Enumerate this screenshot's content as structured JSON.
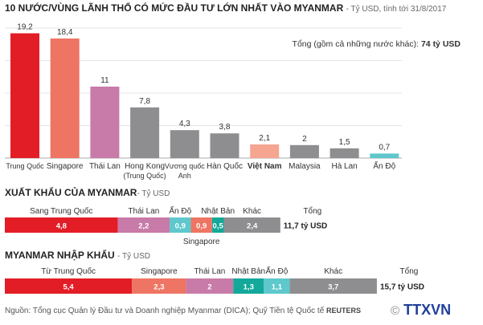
{
  "colors": {
    "red": "#e31d26",
    "salmon": "#ee7463",
    "pink": "#c87aa8",
    "gray": "#8e8e90",
    "vn": "#f5a590",
    "teal_light": "#5ec8cc",
    "teal_dark": "#14a89a"
  },
  "chart_data": [
    {
      "type": "bar",
      "title": "10 NƯỚC/VÙNG LÃNH THỔ CÓ MỨC ĐẦU TƯ LỚN NHẤT VÀO MYANMAR",
      "subtitle": "- Tỷ USD, tính tới 31/8/2017",
      "categories": [
        [
          "Trung Quốc"
        ],
        [
          "Singapore"
        ],
        [
          "Thái Lan"
        ],
        [
          "Hong Kong",
          "(Trung Quốc)"
        ],
        [
          "Vương quốc",
          "Anh"
        ],
        [
          "Hàn Quốc"
        ],
        [
          "Việt Nam"
        ],
        [
          "Malaysia"
        ],
        [
          "Hà Lan"
        ],
        [
          "Ấn Độ"
        ]
      ],
      "values": [
        19.2,
        18.4,
        11,
        7.8,
        4.3,
        3.8,
        2.1,
        2,
        1.5,
        0.7
      ],
      "value_labels": [
        "19,2",
        "18,4",
        "11",
        "7,8",
        "4,3",
        "3,8",
        "2,1",
        "2",
        "1,5",
        "0,7"
      ],
      "bar_colors": [
        "red",
        "salmon",
        "pink",
        "gray",
        "gray",
        "gray",
        "vn",
        "gray",
        "gray",
        "teal_light"
      ],
      "highlight": "Việt Nam",
      "ylim": [
        0,
        20
      ],
      "grid": true,
      "note_prefix": "Tổng (gồm cả những nước khác): ",
      "note_value": "74 tỷ USD"
    },
    {
      "type": "stacked-bar",
      "title": "XUẤT KHẨU CỦA MYANMAR",
      "subtitle": "- Tỷ USD",
      "segments": [
        {
          "name": "Sang Trung Quốc",
          "value": 4.8,
          "label": "4,8",
          "color": "red"
        },
        {
          "name": "Thái Lan",
          "value": 2.2,
          "label": "2,2",
          "color": "pink"
        },
        {
          "name": "Ấn Độ",
          "value": 0.9,
          "label": "0,9",
          "color": "teal_light"
        },
        {
          "name": "Singapore",
          "value": 0.9,
          "label": "0,9",
          "color": "salmon",
          "below": true
        },
        {
          "name": "Nhật Bản",
          "value": 0.5,
          "label": "0,5",
          "color": "teal_dark"
        },
        {
          "name": "Khác",
          "value": 2.4,
          "label": "2,4",
          "color": "gray"
        }
      ],
      "total_label": "Tổng",
      "total_value": "11,7 tỷ USD"
    },
    {
      "type": "stacked-bar",
      "title": "MYANMAR NHẬP KHẨU",
      "subtitle": "- Tỷ USD",
      "segments": [
        {
          "name": "Từ Trung Quốc",
          "value": 5.4,
          "label": "5,4",
          "color": "red"
        },
        {
          "name": "Singapore",
          "value": 2.3,
          "label": "2,3",
          "color": "salmon"
        },
        {
          "name": "Thái Lan",
          "value": 2,
          "label": "2",
          "color": "pink"
        },
        {
          "name": "Nhật Bản",
          "value": 1.3,
          "label": "1,3",
          "color": "teal_dark"
        },
        {
          "name": "Ấn Độ",
          "value": 1.1,
          "label": "1,1",
          "color": "teal_light"
        },
        {
          "name": "Khác",
          "value": 3.7,
          "label": "3,7",
          "color": "gray"
        }
      ],
      "total_label": "Tổng",
      "total_value": "15,7 tỷ USD"
    }
  ],
  "footer": {
    "source": "Nguồn: Tổng cục Quản lý Đầu tư và Doanh nghiệp Myanmar (DICA); Quỹ Tiền tệ Quốc tế",
    "reuters": "REUTERS",
    "ttxvn": "TTXVN"
  }
}
